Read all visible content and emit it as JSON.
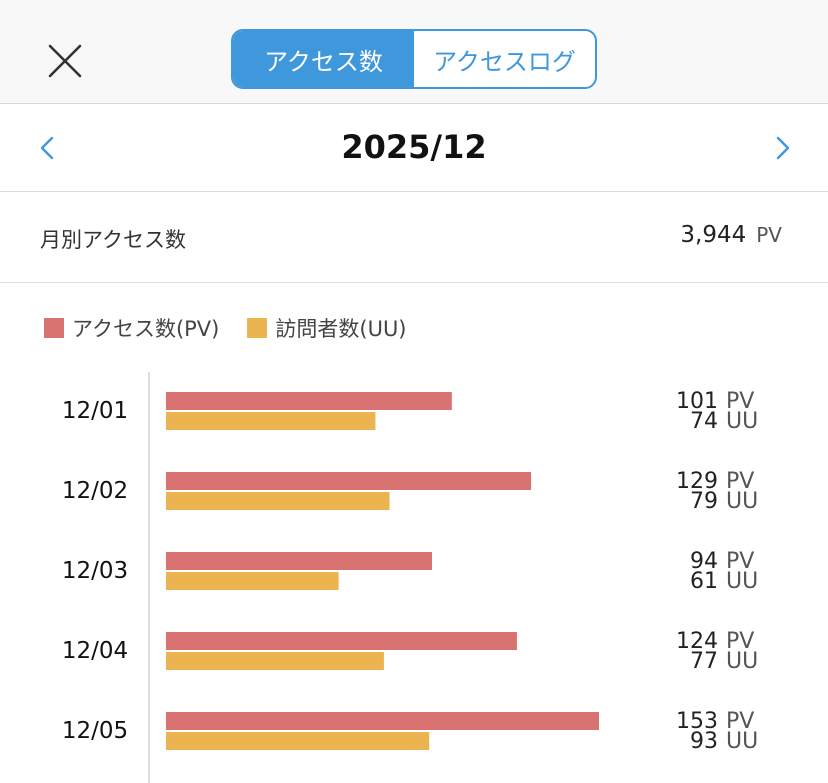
{
  "header": {
    "tabs": [
      {
        "label": "アクセス数",
        "active": true
      },
      {
        "label": "アクセスログ",
        "active": false
      }
    ],
    "close_icon": "close-icon"
  },
  "month_nav": {
    "title": "2025/12",
    "prev_icon": "chevron-left-icon",
    "next_icon": "chevron-right-icon"
  },
  "summary": {
    "label": "月別アクセス数",
    "value": "3,944",
    "unit": "PV"
  },
  "colors": {
    "accent": "#3f97dc",
    "pv": "#d97371",
    "uu": "#ecb450"
  },
  "chart_data": {
    "type": "bar",
    "orientation": "horizontal",
    "categories": [
      "12/01",
      "12/02",
      "12/03",
      "12/04",
      "12/05"
    ],
    "series": [
      {
        "name": "アクセス数(PV)",
        "unit": "PV",
        "values": [
          101,
          129,
          94,
          124,
          153
        ]
      },
      {
        "name": "訪問者数(UU)",
        "unit": "UU",
        "values": [
          74,
          79,
          61,
          77,
          93
        ]
      }
    ],
    "legend": "top-left",
    "grid": false
  }
}
